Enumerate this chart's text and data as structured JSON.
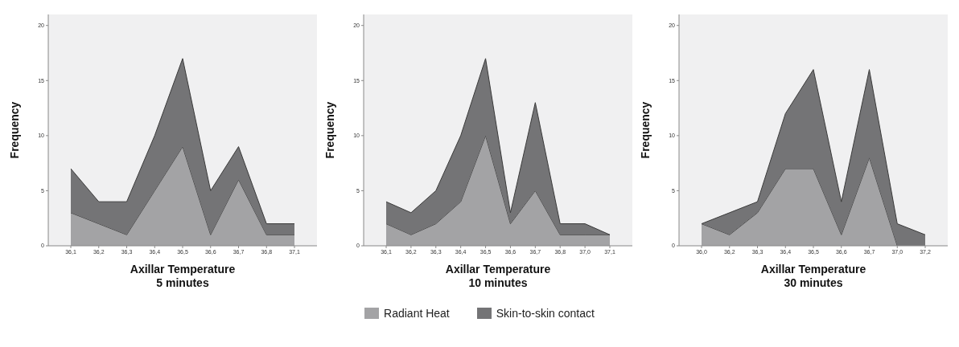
{
  "chart_data": [
    {
      "type": "area",
      "stacked": true,
      "xlabel": "Axillar Temperature\n5 minutes",
      "ylabel": "Frequency",
      "categories": [
        "36,1",
        "36,2",
        "36,3",
        "36,4",
        "36,5",
        "36,6",
        "36,7",
        "36,8",
        "37,1"
      ],
      "ylim": [
        0,
        21
      ],
      "yticks": [
        0,
        5,
        10,
        15,
        20
      ],
      "series": [
        {
          "color": "#a3a3a5",
          "values": [
            3,
            2,
            1,
            5,
            9,
            1,
            6,
            1,
            1
          ]
        },
        {
          "color": "#747476",
          "values": [
            4,
            2,
            3,
            5,
            8,
            4,
            3,
            1,
            1
          ]
        }
      ]
    },
    {
      "type": "area",
      "stacked": true,
      "xlabel": "Axillar Temperature\n10 minutes",
      "ylabel": "Frequency",
      "legend": "bottom",
      "categories": [
        "36,1",
        "36,2",
        "36,3",
        "36,4",
        "36,5",
        "36,6",
        "36,7",
        "36,8",
        "37,0",
        "37,1"
      ],
      "ylim": [
        0,
        21
      ],
      "yticks": [
        0,
        5,
        10,
        15,
        20
      ],
      "series": [
        {
          "name": "Radiant Heat",
          "color": "#a3a3a5",
          "values": [
            2,
            1,
            2,
            4,
            10,
            2,
            5,
            1,
            1,
            1
          ]
        },
        {
          "name": "Skin-to-skin contact",
          "color": "#747476",
          "values": [
            2,
            2,
            3,
            6,
            7,
            1,
            8,
            1,
            1,
            0
          ]
        }
      ]
    },
    {
      "type": "area",
      "stacked": true,
      "xlabel": "Axillar Temperature\n30 minutes",
      "ylabel": "Frequency",
      "categories": [
        "36,0",
        "36,2",
        "36,3",
        "36,4",
        "36,5",
        "36,6",
        "36,7",
        "37,0",
        "37,2"
      ],
      "ylim": [
        0,
        21
      ],
      "yticks": [
        0,
        5,
        10,
        15,
        20
      ],
      "series": [
        {
          "color": "#a3a3a5",
          "values": [
            2,
            1,
            3,
            7,
            7,
            1,
            8,
            0,
            0
          ]
        },
        {
          "color": "#747476",
          "values": [
            0,
            2,
            1,
            5,
            9,
            3,
            8,
            2,
            1
          ]
        }
      ]
    }
  ]
}
